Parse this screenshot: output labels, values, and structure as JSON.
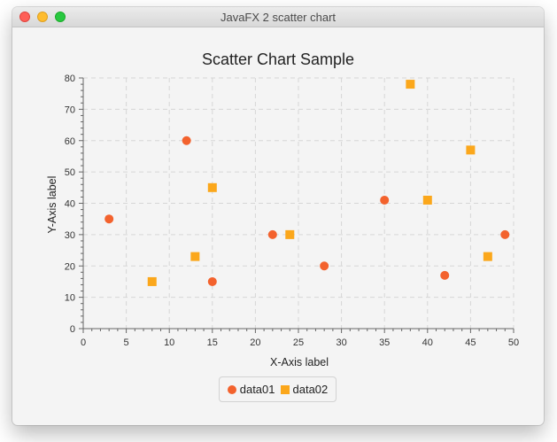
{
  "window": {
    "title": "JavaFX 2 scatter chart"
  },
  "colors": {
    "data01": "#f3622d",
    "data02": "#fba71b",
    "grid": "#d6d6d6",
    "axis": "#666666"
  },
  "chart_data": {
    "type": "scatter",
    "title": "Scatter Chart Sample",
    "xlabel": "X-Axis label",
    "ylabel": "Y-Axis label",
    "xlim": [
      0,
      50
    ],
    "ylim": [
      0,
      80
    ],
    "xticks": [
      0,
      5,
      10,
      15,
      20,
      25,
      30,
      35,
      40,
      45,
      50
    ],
    "yticks": [
      0,
      10,
      20,
      30,
      40,
      50,
      60,
      70,
      80
    ],
    "grid": true,
    "legend_position": "bottom",
    "series": [
      {
        "name": "data01",
        "marker": "circle",
        "points": [
          [
            3,
            35
          ],
          [
            12,
            60
          ],
          [
            15,
            15
          ],
          [
            22,
            30
          ],
          [
            28,
            20
          ],
          [
            35,
            41
          ],
          [
            42,
            17
          ],
          [
            49,
            30
          ]
        ]
      },
      {
        "name": "data02",
        "marker": "square",
        "points": [
          [
            8,
            15
          ],
          [
            13,
            23
          ],
          [
            15,
            45
          ],
          [
            24,
            30
          ],
          [
            38,
            78
          ],
          [
            40,
            41
          ],
          [
            45,
            57
          ],
          [
            47,
            23
          ]
        ]
      }
    ]
  }
}
